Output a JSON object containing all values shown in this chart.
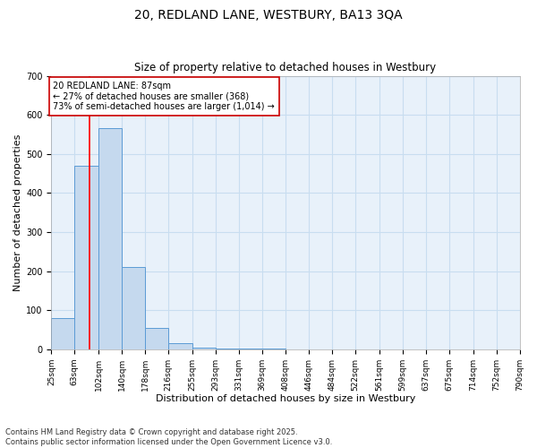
{
  "title1": "20, REDLAND LANE, WESTBURY, BA13 3QA",
  "title2": "Size of property relative to detached houses in Westbury",
  "xlabel": "Distribution of detached houses by size in Westbury",
  "ylabel": "Number of detached properties",
  "bin_edges": [
    25,
    63,
    102,
    140,
    178,
    216,
    255,
    293,
    331,
    369,
    408,
    446,
    484,
    522,
    561,
    599,
    637,
    675,
    714,
    752,
    790
  ],
  "bar_heights": [
    80,
    470,
    565,
    210,
    55,
    15,
    5,
    2,
    1,
    1,
    0,
    0,
    0,
    0,
    0,
    0,
    0,
    0,
    0,
    0
  ],
  "bar_color": "#c5d9ee",
  "bar_edge_color": "#5b9bd5",
  "grid_color": "#c8ddf0",
  "background_color": "#e8f1fa",
  "red_line_x": 87,
  "annotation_text": "20 REDLAND LANE: 87sqm\n← 27% of detached houses are smaller (368)\n73% of semi-detached houses are larger (1,014) →",
  "annotation_box_color": "#ffffff",
  "annotation_box_edge": "#cc0000",
  "ylim": [
    0,
    700
  ],
  "yticks": [
    0,
    100,
    200,
    300,
    400,
    500,
    600,
    700
  ],
  "footer": "Contains HM Land Registry data © Crown copyright and database right 2025.\nContains public sector information licensed under the Open Government Licence v3.0.",
  "title_fontsize": 10,
  "subtitle_fontsize": 8.5,
  "axis_label_fontsize": 8,
  "tick_fontsize": 6.5,
  "annotation_fontsize": 7
}
